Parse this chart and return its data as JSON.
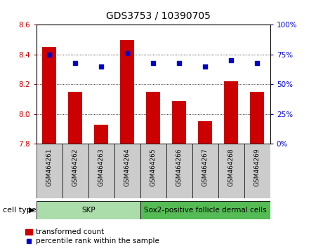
{
  "title": "GDS3753 / 10390705",
  "samples": [
    "GSM464261",
    "GSM464262",
    "GSM464263",
    "GSM464264",
    "GSM464265",
    "GSM464266",
    "GSM464267",
    "GSM464268",
    "GSM464269"
  ],
  "transformed_count": [
    8.45,
    8.15,
    7.93,
    8.5,
    8.15,
    8.09,
    7.95,
    8.22,
    8.15
  ],
  "percentile_rank": [
    75,
    68,
    65,
    76,
    68,
    68,
    65,
    70,
    68
  ],
  "ylim_left": [
    7.8,
    8.6
  ],
  "ylim_right": [
    0,
    100
  ],
  "yticks_left": [
    7.8,
    8.0,
    8.2,
    8.4,
    8.6
  ],
  "yticks_right": [
    0,
    25,
    50,
    75,
    100
  ],
  "bar_color": "#cc0000",
  "dot_color": "#0000cc",
  "cell_type_groups": [
    {
      "label": "SKP",
      "start": 0,
      "end": 4,
      "color": "#aaddaa"
    },
    {
      "label": "Sox2-positive follicle dermal cells",
      "start": 4,
      "end": 9,
      "color": "#55bb55"
    }
  ],
  "cell_type_label": "cell type",
  "legend_bar_label": "transformed count",
  "legend_dot_label": "percentile rank within the sample",
  "bg_plot": "#ffffff",
  "bg_tick_area": "#cccccc",
  "grid_color": "#000000",
  "title_fontsize": 10,
  "tick_fontsize": 7.5,
  "label_fontsize": 8
}
